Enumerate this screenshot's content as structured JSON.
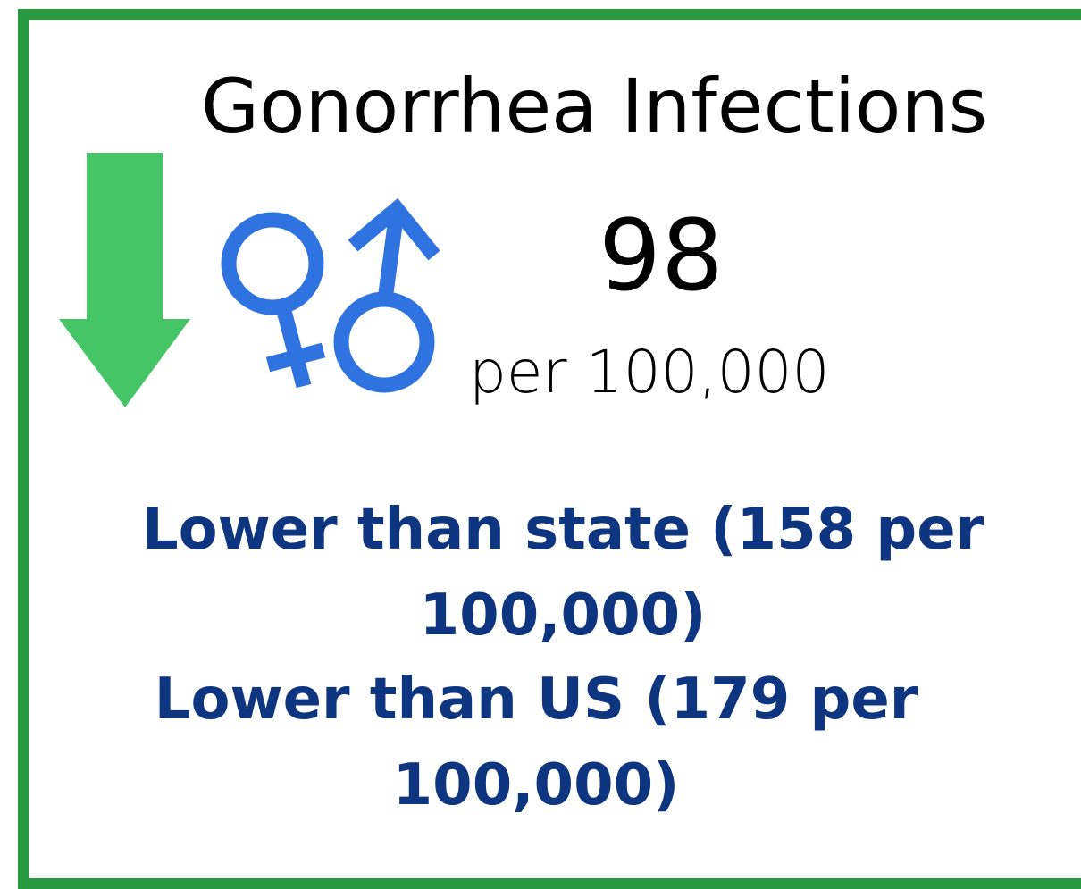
{
  "title": "Gonorrhea Infections",
  "value": "98",
  "unit": "per 100,000",
  "comparisons": [
    "Lower than state (158 per 100,000)",
    "Lower than US (179 per 100,000)"
  ]
}
